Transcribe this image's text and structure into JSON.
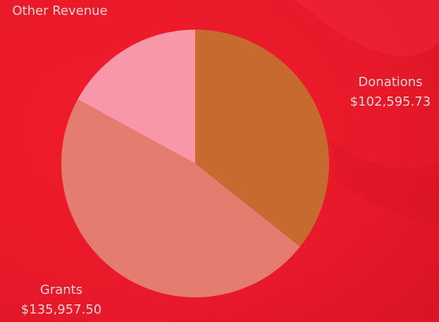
{
  "chart_data": {
    "type": "pie",
    "categories": [
      "Donations",
      "Grants",
      "Other Revenue"
    ],
    "values": [
      102595.73,
      135957.5,
      49000
    ],
    "value_labels": [
      "$102,595.73",
      "$135,957.50",
      null
    ],
    "colors": [
      "#c76a30",
      "#e57c70",
      "#f797a7"
    ]
  }
}
